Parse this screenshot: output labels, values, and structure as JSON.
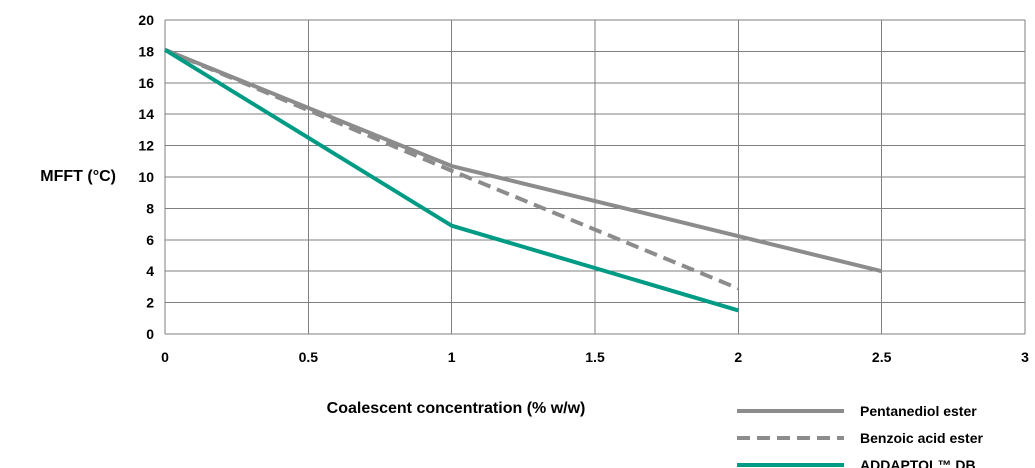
{
  "chart_data": {
    "type": "line",
    "xlabel": "Coalescent concentration (% w/w)",
    "ylabel": "MFFT (°C)",
    "xlim": [
      0,
      3
    ],
    "ylim": [
      0,
      20
    ],
    "x_ticks": [
      "0",
      "0.5",
      "1",
      "1.5",
      "2",
      "2.5",
      "3"
    ],
    "y_ticks": [
      "0",
      "2",
      "4",
      "6",
      "8",
      "10",
      "12",
      "14",
      "16",
      "18",
      "20"
    ],
    "grid": true,
    "legend_position": "bottom-right",
    "series": [
      {
        "name": "Pentanediol ester",
        "color": "#8c8c8c",
        "style": "solid",
        "x": [
          0,
          1,
          2.5
        ],
        "y": [
          18.1,
          10.7,
          4.0
        ]
      },
      {
        "name": "Benzoic acid ester",
        "color": "#8c8c8c",
        "style": "dashed",
        "x": [
          0,
          1,
          2
        ],
        "y": [
          18.1,
          10.4,
          2.9
        ]
      },
      {
        "name": "ADDAPTOL™ DB",
        "color": "#009b84",
        "style": "solid",
        "x": [
          0,
          1,
          2
        ],
        "y": [
          18.1,
          6.9,
          1.5
        ]
      }
    ]
  }
}
